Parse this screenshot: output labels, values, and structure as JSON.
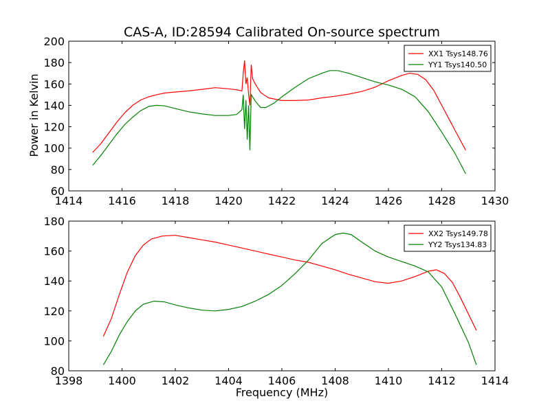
{
  "figure": {
    "title": "CAS-A, ID:28594 Calibrated On-source spectrum",
    "ylabel": "Power in Kelvin",
    "xlabel": "Frequency (MHz)"
  },
  "chart_data": [
    {
      "type": "line",
      "title": "CAS-A, ID:28594 Calibrated On-source spectrum",
      "ylabel": "Power in Kelvin",
      "xlabel": "",
      "xlim": [
        1414,
        1430
      ],
      "ylim": [
        60,
        200
      ],
      "xticks": [
        "1414",
        "1416",
        "1418",
        "1420",
        "1422",
        "1424",
        "1426",
        "1428",
        "1430"
      ],
      "yticks": [
        "60",
        "80",
        "100",
        "120",
        "140",
        "160",
        "180",
        "200"
      ],
      "legend_position": "top-right",
      "series": [
        {
          "name": "XX1 Tsys148.76",
          "color": "#ff0000",
          "points": [
            [
              1414.9,
              96
            ],
            [
              1415.2,
              104
            ],
            [
              1415.5,
              114
            ],
            [
              1415.8,
              124
            ],
            [
              1416.1,
              133
            ],
            [
              1416.4,
              140
            ],
            [
              1416.7,
              145
            ],
            [
              1417.0,
              148
            ],
            [
              1417.3,
              150
            ],
            [
              1417.6,
              151.5
            ],
            [
              1418.0,
              152.5
            ],
            [
              1418.5,
              153.5
            ],
            [
              1419.0,
              155
            ],
            [
              1419.5,
              156.5
            ],
            [
              1420.0,
              155.5
            ],
            [
              1420.3,
              154.5
            ],
            [
              1420.5,
              153.5
            ],
            [
              1420.55,
              170
            ],
            [
              1420.6,
              182
            ],
            [
              1420.65,
              160
            ],
            [
              1420.7,
              166
            ],
            [
              1420.75,
              150
            ],
            [
              1420.8,
              140
            ],
            [
              1420.85,
              178
            ],
            [
              1420.9,
              165
            ],
            [
              1421.0,
              160
            ],
            [
              1421.2,
              152
            ],
            [
              1421.5,
              147
            ],
            [
              1422.0,
              144.5
            ],
            [
              1422.5,
              144.5
            ],
            [
              1423.0,
              145
            ],
            [
              1423.5,
              147
            ],
            [
              1424.0,
              148.5
            ],
            [
              1424.5,
              150.5
            ],
            [
              1425.0,
              153
            ],
            [
              1425.5,
              157
            ],
            [
              1426.0,
              163
            ],
            [
              1426.5,
              168
            ],
            [
              1426.8,
              170
            ],
            [
              1427.1,
              169
            ],
            [
              1427.4,
              164
            ],
            [
              1427.7,
              154
            ],
            [
              1428.0,
              140
            ],
            [
              1428.3,
              126
            ],
            [
              1428.6,
              112
            ],
            [
              1428.9,
              98
            ]
          ]
        },
        {
          "name": "YY1 Tsys140.50",
          "color": "#008000",
          "points": [
            [
              1414.9,
              84
            ],
            [
              1415.2,
              93
            ],
            [
              1415.5,
              103
            ],
            [
              1415.8,
              113
            ],
            [
              1416.1,
              122
            ],
            [
              1416.4,
              129
            ],
            [
              1416.7,
              135
            ],
            [
              1417.0,
              139
            ],
            [
              1417.3,
              140
            ],
            [
              1417.6,
              139.5
            ],
            [
              1418.0,
              137
            ],
            [
              1418.5,
              134
            ],
            [
              1419.0,
              132
            ],
            [
              1419.5,
              130.5
            ],
            [
              1420.0,
              130.5
            ],
            [
              1420.3,
              131.5
            ],
            [
              1420.5,
              136
            ],
            [
              1420.55,
              150
            ],
            [
              1420.6,
              118
            ],
            [
              1420.65,
              145
            ],
            [
              1420.7,
              108
            ],
            [
              1420.75,
              140
            ],
            [
              1420.8,
              98
            ],
            [
              1420.85,
              150
            ],
            [
              1420.9,
              148
            ],
            [
              1421.0,
              144
            ],
            [
              1421.2,
              138
            ],
            [
              1421.4,
              138
            ],
            [
              1421.7,
              142
            ],
            [
              1422.0,
              148
            ],
            [
              1422.5,
              157
            ],
            [
              1423.0,
              165
            ],
            [
              1423.5,
              170
            ],
            [
              1423.8,
              172.5
            ],
            [
              1424.1,
              172.5
            ],
            [
              1424.5,
              170
            ],
            [
              1425.0,
              166
            ],
            [
              1425.5,
              162
            ],
            [
              1426.0,
              159
            ],
            [
              1426.5,
              155
            ],
            [
              1427.0,
              148
            ],
            [
              1427.5,
              134
            ],
            [
              1428.0,
              115
            ],
            [
              1428.5,
              95
            ],
            [
              1428.9,
              76
            ]
          ]
        }
      ]
    },
    {
      "type": "line",
      "title": "",
      "ylabel": "",
      "xlabel": "Frequency (MHz)",
      "xlim": [
        1398,
        1414
      ],
      "ylim": [
        80,
        180
      ],
      "xticks": [
        "1398",
        "1400",
        "1402",
        "1404",
        "1406",
        "1408",
        "1410",
        "1412",
        "1414"
      ],
      "yticks": [
        "80",
        "100",
        "120",
        "140",
        "160",
        "180"
      ],
      "legend_position": "top-right",
      "series": [
        {
          "name": "XX2 Tsys149.78",
          "color": "#ff0000",
          "points": [
            [
              1399.3,
              103
            ],
            [
              1399.6,
              115
            ],
            [
              1399.9,
              131
            ],
            [
              1400.2,
              146
            ],
            [
              1400.5,
              157
            ],
            [
              1400.8,
              164
            ],
            [
              1401.1,
              168
            ],
            [
              1401.5,
              170
            ],
            [
              1402.0,
              170.5
            ],
            [
              1402.5,
              169
            ],
            [
              1403.0,
              167.5
            ],
            [
              1403.5,
              166
            ],
            [
              1404.0,
              164
            ],
            [
              1404.5,
              162
            ],
            [
              1405.0,
              160
            ],
            [
              1405.5,
              158
            ],
            [
              1406.0,
              156
            ],
            [
              1406.5,
              154
            ],
            [
              1407.0,
              152.5
            ],
            [
              1407.5,
              150
            ],
            [
              1408.0,
              147.5
            ],
            [
              1408.5,
              144.5
            ],
            [
              1409.0,
              142
            ],
            [
              1409.5,
              139.5
            ],
            [
              1410.0,
              138.5
            ],
            [
              1410.5,
              140
            ],
            [
              1411.0,
              143
            ],
            [
              1411.5,
              146.5
            ],
            [
              1411.8,
              147.5
            ],
            [
              1412.1,
              145
            ],
            [
              1412.4,
              139
            ],
            [
              1412.7,
              129
            ],
            [
              1413.0,
              118
            ],
            [
              1413.3,
              107
            ]
          ]
        },
        {
          "name": "YY2 Tsys134.83",
          "color": "#008000",
          "points": [
            [
              1399.3,
              84
            ],
            [
              1399.6,
              93
            ],
            [
              1399.9,
              104
            ],
            [
              1400.2,
              113
            ],
            [
              1400.5,
              120
            ],
            [
              1400.8,
              124.5
            ],
            [
              1401.2,
              126.5
            ],
            [
              1401.6,
              126
            ],
            [
              1402.0,
              124
            ],
            [
              1402.5,
              122
            ],
            [
              1403.0,
              120.5
            ],
            [
              1403.5,
              120
            ],
            [
              1404.0,
              121
            ],
            [
              1404.5,
              123
            ],
            [
              1405.0,
              126.5
            ],
            [
              1405.5,
              131
            ],
            [
              1406.0,
              137
            ],
            [
              1406.5,
              145
            ],
            [
              1407.0,
              154
            ],
            [
              1407.5,
              165
            ],
            [
              1408.0,
              171
            ],
            [
              1408.3,
              172
            ],
            [
              1408.6,
              171
            ],
            [
              1409.0,
              166
            ],
            [
              1409.5,
              160
            ],
            [
              1410.0,
              156
            ],
            [
              1410.5,
              153
            ],
            [
              1411.0,
              150
            ],
            [
              1411.5,
              146
            ],
            [
              1412.0,
              136
            ],
            [
              1412.5,
              118
            ],
            [
              1413.0,
              99
            ],
            [
              1413.3,
              84
            ]
          ]
        }
      ]
    }
  ]
}
